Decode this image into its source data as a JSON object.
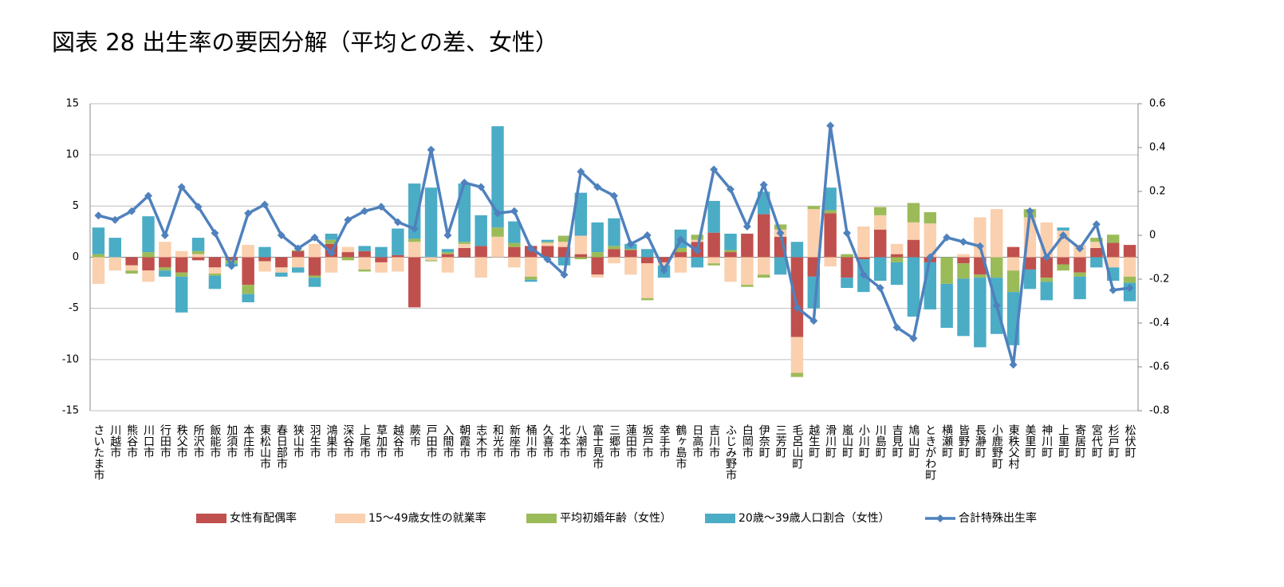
{
  "chart_data": {
    "type": "bar",
    "title": "図表 28 出生率の要因分解（平均との差、女性）",
    "categories": [
      "さいたま市",
      "川越市",
      "熊谷市",
      "川口市",
      "行田市",
      "秩父市",
      "所沢市",
      "飯能市",
      "加須市",
      "本庄市",
      "東松山市",
      "春日部市",
      "狭山市",
      "羽生市",
      "鴻巣市",
      "深谷市",
      "上尾市",
      "草加市",
      "越谷市",
      "蕨市",
      "戸田市",
      "入間市",
      "朝霞市",
      "志木市",
      "和光市",
      "新座市",
      "桶川市",
      "久喜市",
      "北本市",
      "八潮市",
      "富士見市",
      "三郷市",
      "蓮田市",
      "坂戸市",
      "幸手市",
      "鶴ヶ島市",
      "日高市",
      "吉川市",
      "ふじみ野市",
      "白岡市",
      "伊奈町",
      "三芳町",
      "毛呂山町",
      "越生町",
      "滑川町",
      "嵐山町",
      "小川町",
      "川島町",
      "吉見町",
      "鳩山町",
      "ときがわ町",
      "横瀬町",
      "皆野町",
      "長瀞町",
      "小鹿野町",
      "東秩父村",
      "美里町",
      "神川町",
      "上里町",
      "寄居町",
      "宮代町",
      "杉戸町",
      "松伏町"
    ],
    "series": [
      {
        "name": "女性有配偶率",
        "type": "bar",
        "color": "#c0504d",
        "values": [
          0,
          0,
          -0.8,
          -1.3,
          -1.0,
          -1.5,
          -0.3,
          -1.0,
          -0.3,
          -2.7,
          -0.4,
          -1.0,
          0.6,
          -1.8,
          1.3,
          0.5,
          0.6,
          -0.5,
          0.2,
          -4.9,
          0,
          0.3,
          0.9,
          1.1,
          0,
          1.0,
          1.1,
          1.1,
          1.0,
          0.3,
          -1.7,
          0.8,
          0.7,
          -0.6,
          -0.5,
          0.5,
          1.5,
          2.4,
          0.5,
          2.3,
          4.2,
          2.0,
          -7.8,
          -1.9,
          4.3,
          -2.0,
          -0.2,
          2.7,
          0.3,
          1.7,
          -0.5,
          0,
          -0.6,
          -1.7,
          0,
          1.0,
          -1.2,
          -2.0,
          -0.7,
          -1.5,
          0.9,
          1.4,
          1.2
        ]
      },
      {
        "name": "15～49歳女性の就業率",
        "type": "bar",
        "color": "#fad0ae",
        "values": [
          -2.6,
          -1.3,
          -0.5,
          -1.1,
          1.5,
          0.6,
          0.3,
          -0.6,
          0,
          1.2,
          -1.0,
          -0.5,
          -1.0,
          1.3,
          -1.5,
          0.5,
          -1.2,
          -1.0,
          -1.4,
          1.5,
          -0.3,
          -1.5,
          0.4,
          -2.0,
          2.0,
          -1.0,
          -1.9,
          0.3,
          0.5,
          1.8,
          -0.3,
          -0.6,
          -1.7,
          -3.4,
          -0.3,
          -1.5,
          0.2,
          -0.6,
          -2.4,
          -2.7,
          -1.7,
          0.7,
          -3.5,
          4.7,
          -0.9,
          0,
          3.0,
          1.4,
          1.0,
          1.7,
          3.3,
          0,
          0.3,
          3.9,
          4.7,
          -1.3,
          3.9,
          3.4,
          2.6,
          1.2,
          0.6,
          -1.0,
          -1.9
        ]
      },
      {
        "name": "平均初婚年齢（女性）",
        "type": "bar",
        "color": "#9bbb59",
        "values": [
          0.3,
          0,
          -0.3,
          0.5,
          -0.3,
          -0.4,
          0.3,
          -0.2,
          -0.3,
          -0.9,
          0,
          0,
          0.1,
          -0.2,
          0.4,
          -0.3,
          -0.2,
          0,
          0,
          0.3,
          -0.1,
          0.2,
          0.2,
          0,
          0.9,
          0.4,
          -0.3,
          0.1,
          0.6,
          -0.2,
          0.5,
          0.3,
          0.1,
          -0.2,
          0,
          0.4,
          0.5,
          -0.2,
          0.2,
          -0.2,
          -0.3,
          0.5,
          -0.4,
          0.3,
          0.3,
          0.3,
          0,
          0.8,
          -0.5,
          1.9,
          1.1,
          -2.6,
          -1.5,
          -0.3,
          -2.0,
          -2.1,
          0.8,
          -0.4,
          -0.6,
          -0.4,
          0.4,
          0.8,
          -0.6
        ]
      },
      {
        "name": "20歳～39歳人口割合（女性）",
        "type": "bar",
        "color": "#4bacc6",
        "values": [
          2.6,
          1.9,
          0,
          3.5,
          -0.6,
          -3.5,
          1.3,
          -1.3,
          -0.3,
          -0.8,
          1.0,
          -0.4,
          -0.5,
          -0.9,
          0.6,
          0,
          0.5,
          1.0,
          2.6,
          5.4,
          6.8,
          0.3,
          5.7,
          3.0,
          9.9,
          2.1,
          -0.2,
          0.2,
          -0.8,
          4.2,
          2.9,
          2.7,
          0.5,
          0.8,
          -1.2,
          1.8,
          -1.0,
          3.1,
          1.6,
          0,
          2.2,
          -1.7,
          1.5,
          -3.1,
          2.2,
          -1.0,
          -3.2,
          -2.3,
          -2.2,
          -5.8,
          -4.6,
          -4.3,
          -5.6,
          -6.8,
          -5.5,
          -5.2,
          -1.9,
          -1.8,
          0.3,
          -2.2,
          -1.0,
          -1.3,
          -1.8
        ]
      },
      {
        "name": "合計特殊出生率",
        "type": "line",
        "axis": "y2",
        "color": "#4f81bd",
        "values": [
          0.09,
          0.07,
          0.11,
          0.18,
          0,
          0.22,
          0.13,
          0.01,
          -0.14,
          0.1,
          0.14,
          0,
          -0.06,
          -0.01,
          -0.08,
          0.07,
          0.11,
          0.13,
          0.06,
          0.03,
          0.39,
          0,
          0.24,
          0.22,
          0.1,
          0.11,
          -0.06,
          -0.11,
          -0.18,
          0.29,
          0.22,
          0.18,
          -0.04,
          0,
          -0.16,
          -0.02,
          -0.07,
          0.3,
          0.21,
          0.04,
          0.23,
          0.01,
          -0.33,
          -0.39,
          0.5,
          0.01,
          -0.18,
          -0.24,
          -0.42,
          -0.47,
          -0.1,
          -0.01,
          -0.03,
          -0.05,
          -0.32,
          -0.59,
          0.11,
          -0.1,
          0,
          -0.06,
          0.05,
          -0.25,
          -0.24
        ]
      }
    ],
    "ylim": [
      -15,
      15
    ],
    "yticks": [
      -15,
      -10,
      -5,
      0,
      5,
      10,
      15
    ],
    "y2lim": [
      -0.8,
      0.6
    ],
    "y2ticks": [
      -0.8,
      -0.6,
      -0.4,
      -0.2,
      0,
      0.2,
      0.4,
      0.6
    ],
    "grid": true
  }
}
